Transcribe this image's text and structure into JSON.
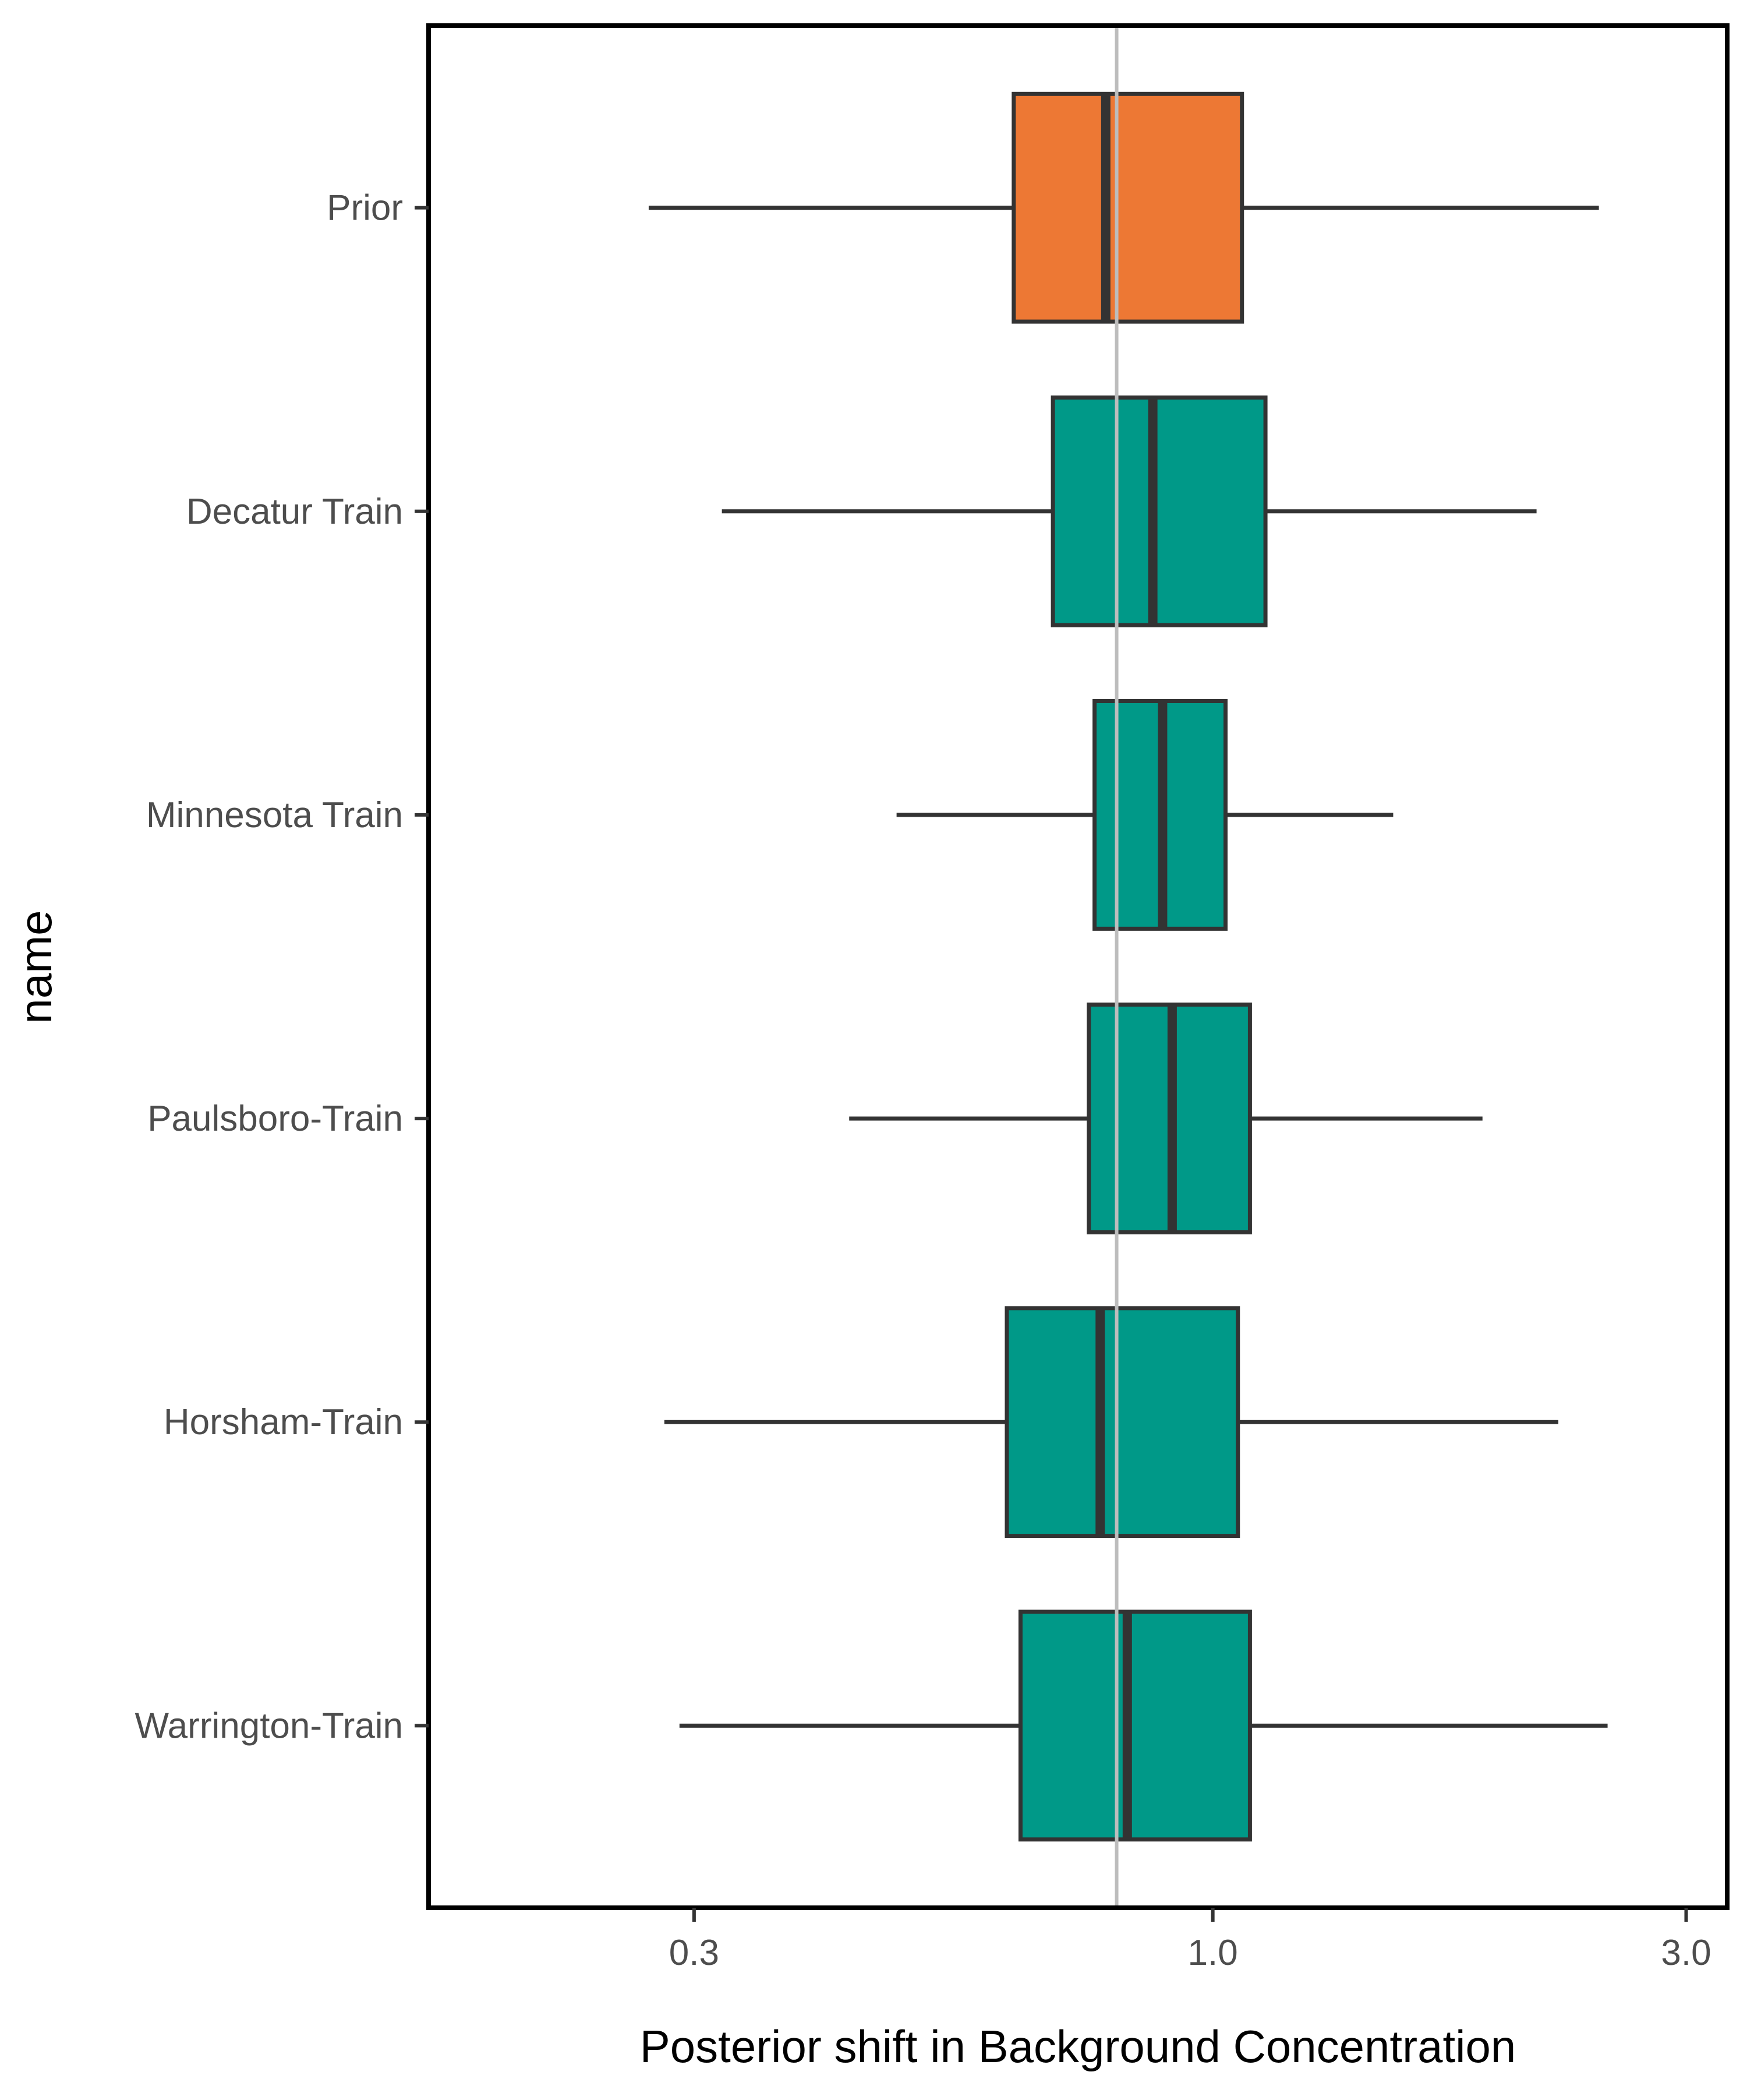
{
  "chart_data": {
    "type": "boxplot",
    "orientation": "horizontal",
    "xlabel": "Posterior shift in Background Concentration",
    "ylabel": "name",
    "x_scale": "log10",
    "xlim": [
      0.162,
      3.3
    ],
    "x_ticks": [
      {
        "value": 0.3,
        "label": "0.3"
      },
      {
        "value": 1.0,
        "label": "1.0"
      },
      {
        "value": 3.0,
        "label": "3.0"
      }
    ],
    "reference_line": {
      "x": 0.8,
      "color": "#bdbdbd"
    },
    "grid": false,
    "legend": "none",
    "categories": [
      "Prior",
      "Decatur Train",
      "Minnesota Train",
      "Paulsboro-Train",
      "Horsham-Train",
      "Warrington-Train"
    ],
    "boxes": [
      {
        "name": "Prior",
        "whisker_low": 0.27,
        "q1": 0.63,
        "median": 0.78,
        "q3": 1.07,
        "whisker_high": 2.45,
        "color": "#ed7834"
      },
      {
        "name": "Decatur Train",
        "whisker_low": 0.32,
        "q1": 0.69,
        "median": 0.87,
        "q3": 1.13,
        "whisker_high": 2.12,
        "color": "#009988"
      },
      {
        "name": "Minnesota Train",
        "whisker_low": 0.48,
        "q1": 0.76,
        "median": 0.89,
        "q3": 1.03,
        "whisker_high": 1.52,
        "color": "#009988"
      },
      {
        "name": "Paulsboro-Train",
        "whisker_low": 0.43,
        "q1": 0.75,
        "median": 0.91,
        "q3": 1.09,
        "whisker_high": 1.87,
        "color": "#009988"
      },
      {
        "name": "Horsham-Train",
        "whisker_low": 0.28,
        "q1": 0.62,
        "median": 0.77,
        "q3": 1.06,
        "whisker_high": 2.23,
        "color": "#009988"
      },
      {
        "name": "Warrington-Train",
        "whisker_low": 0.29,
        "q1": 0.64,
        "median": 0.82,
        "q3": 1.09,
        "whisker_high": 2.5,
        "color": "#009988"
      }
    ],
    "box_outline_color": "#333333"
  }
}
